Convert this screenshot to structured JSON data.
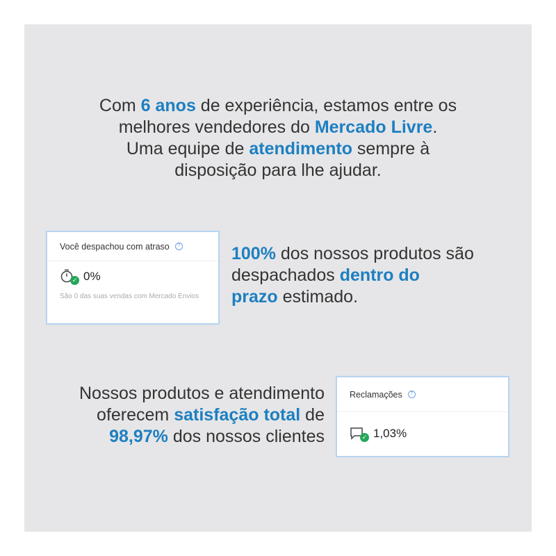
{
  "headline": {
    "l1a": "Com ",
    "l1b": "6 anos",
    "l1c": " de experiência, estamos entre os",
    "l2a": "melhores vendedores do ",
    "l2b": "Mercado Livre",
    "l2c": ".",
    "l3a": "Uma equipe de ",
    "l3b": "atendimento",
    "l3c": " sempre à",
    "l4": "disposição para lhe ajudar."
  },
  "dispatch_card": {
    "title": "Você despachou com atraso",
    "value": "0%",
    "note": "São 0 das suas vendas com Mercado Envios",
    "icon": "stopwatch-check-icon"
  },
  "dispatch_text": {
    "a": "100%",
    "b": " dos nossos produtos são",
    "c": "despachados ",
    "d": "dentro do",
    "e": "prazo",
    "f": " estimado."
  },
  "satisfaction_text": {
    "a": "Nossos produtos e atendimento",
    "b": "oferecem ",
    "c": "satisfação total",
    "d": " de",
    "e": "98,97%",
    "f": " dos nossos clientes"
  },
  "complaints_card": {
    "title": "Reclamações",
    "value": "1,03%",
    "icon": "chat-check-icon"
  },
  "colors": {
    "accent": "#1d7fc1",
    "background": "#e6e6e8",
    "success": "#26a65b"
  }
}
